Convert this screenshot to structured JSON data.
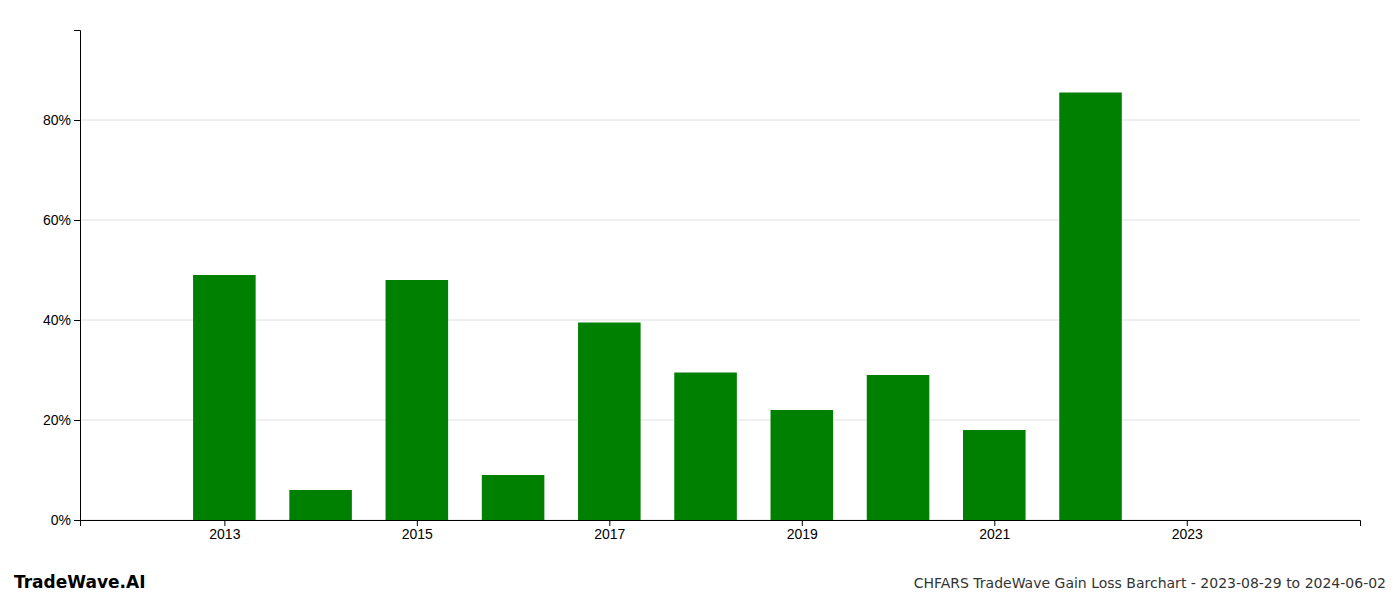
{
  "chart_data": {
    "type": "bar",
    "title": "CHFARS TradeWave Gain Loss Barchart - 2023-08-29 to 2024-06-02",
    "annotations": [
      "TradeWave.AI"
    ],
    "x": [
      2013,
      2014,
      2015,
      2016,
      2017,
      2018,
      2019,
      2020,
      2021,
      2022
    ],
    "values": [
      0.49,
      0.06,
      0.48,
      0.09,
      0.395,
      0.295,
      0.22,
      0.29,
      0.18,
      0.855
    ],
    "color": "#008000",
    "xlim": [
      2011.5,
      2024.8
    ],
    "xticks": [
      2013,
      2015,
      2017,
      2019,
      2021,
      2023
    ],
    "ylim": [
      0,
      0.98
    ],
    "yticks": [
      {
        "value": 0.0,
        "label": "0%"
      },
      {
        "value": 0.2,
        "label": "20%"
      },
      {
        "value": 0.4,
        "label": "40%"
      },
      {
        "value": 0.6,
        "label": "60%"
      },
      {
        "value": 0.8,
        "label": "80%"
      }
    ],
    "grid": true
  }
}
